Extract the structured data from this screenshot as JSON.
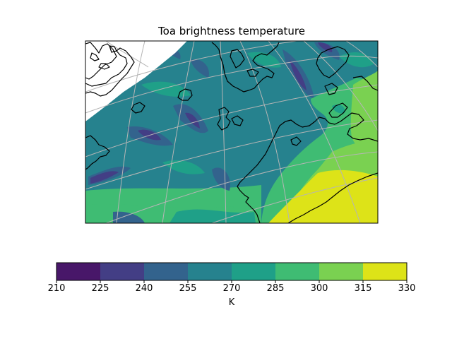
{
  "title": "Toa brightness temperature",
  "colorbar": {
    "label": "K",
    "ticks": [
      "210",
      "225",
      "240",
      "255",
      "270",
      "285",
      "300",
      "315",
      "330"
    ],
    "levels": [
      210,
      225,
      240,
      255,
      270,
      285,
      300,
      315,
      330
    ],
    "colors": [
      "#481769",
      "#433e85",
      "#33638d",
      "#26828e",
      "#1fa088",
      "#3fbc73",
      "#7ad151",
      "#dde318"
    ]
  },
  "map": {
    "projection": "polar stereographic (north)",
    "region": "Greenland Sea / Svalbard / Barents Sea / northern Scandinavia",
    "gridlines": true,
    "coastlines": true
  }
}
